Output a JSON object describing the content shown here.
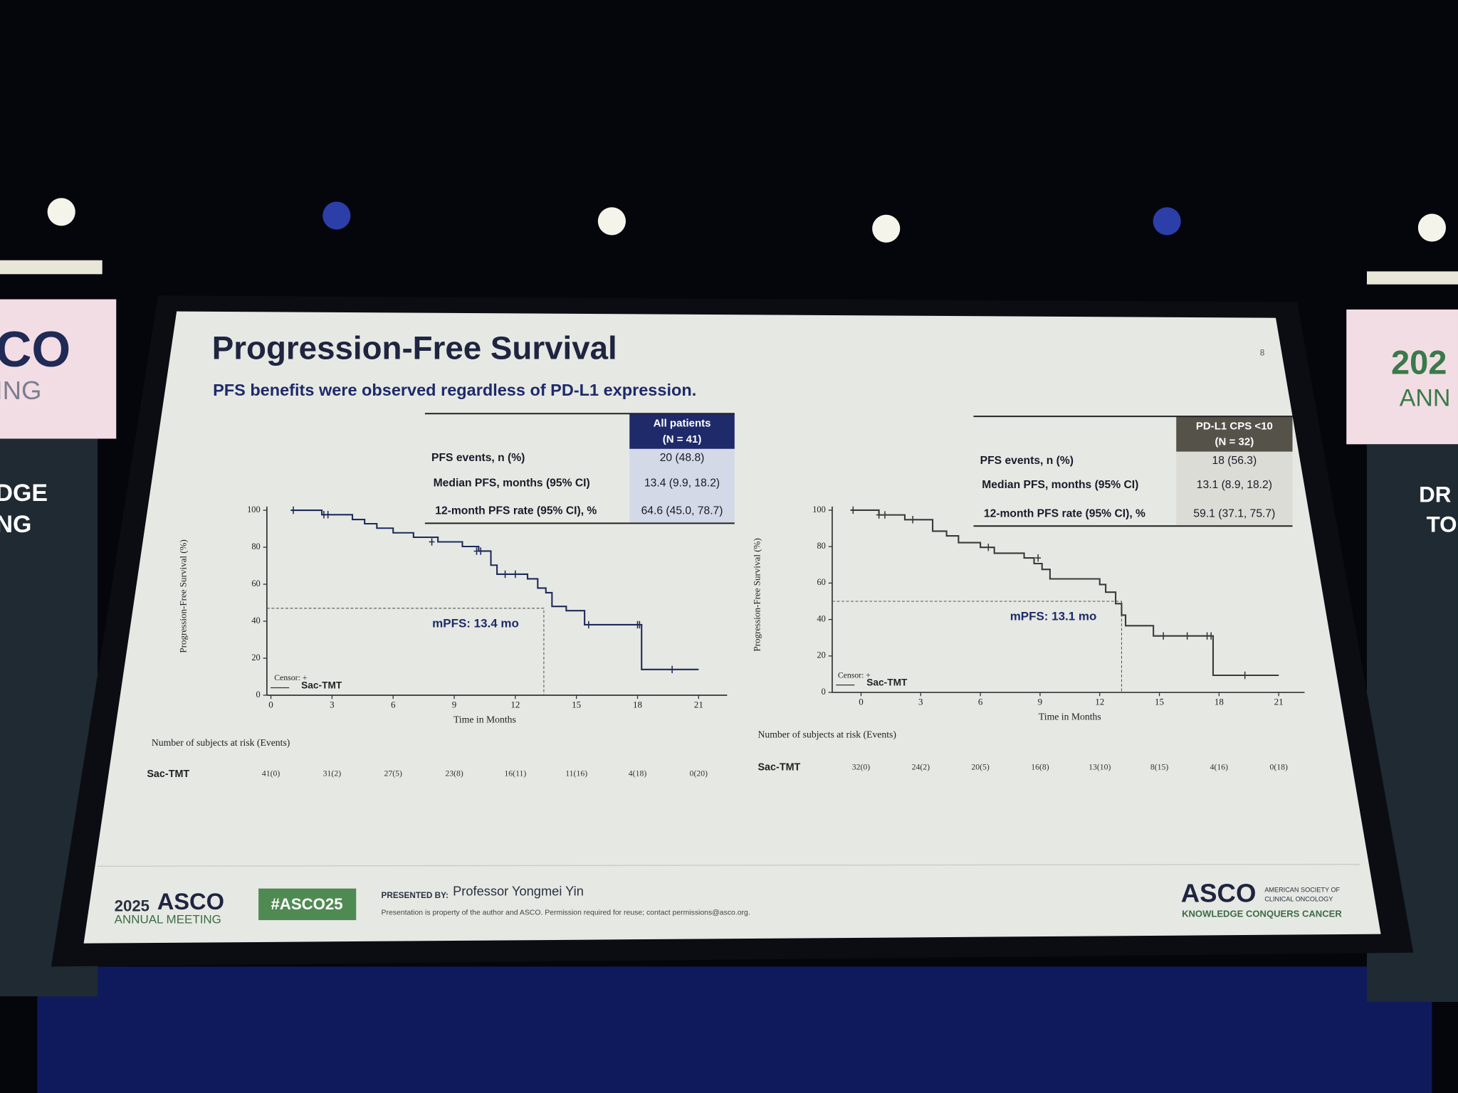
{
  "slide": {
    "title": "Progression-Free Survival",
    "subtitle": "PFS benefits were observed regardless of PD-L1 expression.",
    "page_number": "8"
  },
  "tables": [
    {
      "header": [
        "All patients",
        "(N = 41)"
      ],
      "rows": [
        [
          "PFS events, n (%)",
          "20 (48.8)"
        ],
        [
          "Median PFS, months (95% CI)",
          "13.4 (9.9, 18.2)"
        ],
        [
          "12-month PFS rate (95% CI), %",
          "64.6 (45.0, 78.7)"
        ]
      ]
    },
    {
      "header": [
        "PD-L1 CPS <10",
        "(N = 32)"
      ],
      "rows": [
        [
          "PFS events, n (%)",
          "18 (56.3)"
        ],
        [
          "Median PFS, months (95% CI)",
          "13.1 (8.9, 18.2)"
        ],
        [
          "12-month PFS rate (95% CI), %",
          "59.1 (37.1, 75.7)"
        ]
      ]
    }
  ],
  "chart_data": [
    {
      "type": "line",
      "step": true,
      "ylabel": "Progression-Free Survival (%)",
      "xlabel": "Time in Months",
      "xlim": [
        -0.2,
        22.4
      ],
      "ylim": [
        0,
        102
      ],
      "xticks": [
        0,
        3,
        6,
        9,
        12,
        15,
        18,
        21
      ],
      "yticks": [
        0,
        20,
        40,
        60,
        80,
        100
      ],
      "series": [
        {
          "name": "Sac-TMT",
          "color": "#1f2a5a",
          "x": [
            1.0,
            2.5,
            4.0,
            4.6,
            5.2,
            6.0,
            7.0,
            8.2,
            9.4,
            10.2,
            10.8,
            11.1,
            12.6,
            13.1,
            13.5,
            13.8,
            14.5,
            15.4,
            18.2,
            21.0
          ],
          "values": [
            100,
            97.6,
            95,
            92.7,
            90.3,
            87.8,
            85.4,
            82.9,
            80.4,
            77.9,
            70.3,
            65.4,
            62.9,
            57.9,
            55.4,
            48,
            45.7,
            38.1,
            13.9,
            13.9
          ]
        }
      ],
      "censored": {
        "x": [
          1.1,
          2.6,
          2.8,
          7.9,
          10.1,
          10.3,
          11.5,
          12.0,
          15.6,
          18.0,
          18.1,
          19.7
        ],
        "y": [
          100,
          97.6,
          97.6,
          82.9,
          77.9,
          77.9,
          65.4,
          65.4,
          38.1,
          38.1,
          38.1,
          13.9
        ]
      },
      "median_x": 13.4,
      "median_y": 47,
      "annotation": "mPFS: 13.4 mo",
      "legend_note": "Censor: +",
      "risk_label": "Number of subjects at risk (Events)",
      "risk_row": "Sac-TMT",
      "risk_values": [
        "41(0)",
        "31(2)",
        "27(5)",
        "23(8)",
        "16(11)",
        "11(16)",
        "4(18)",
        "0(20)"
      ]
    },
    {
      "type": "line",
      "step": true,
      "ylabel": "Progression-Free Survival (%)",
      "xlabel": "Time in Months",
      "xlim": [
        -1.45,
        22.3
      ],
      "ylim": [
        0,
        102
      ],
      "xticks": [
        0,
        3,
        6,
        9,
        12,
        15,
        18,
        21
      ],
      "yticks": [
        0,
        20,
        40,
        60,
        80,
        100
      ],
      "series": [
        {
          "name": "Sac-TMT",
          "color": "#3a3a3a",
          "x": [
            -0.5,
            0.9,
            2.2,
            3.6,
            4.3,
            4.9,
            6.0,
            6.7,
            8.2,
            8.7,
            9.1,
            9.5,
            12.0,
            12.3,
            12.8,
            13.1,
            13.3,
            14.7,
            17.7,
            21.0
          ],
          "values": [
            100,
            97.4,
            94.8,
            88.5,
            85.9,
            82.2,
            79.6,
            76.4,
            73.8,
            70.7,
            67.5,
            62.3,
            59.2,
            55,
            48.7,
            42.4,
            36.6,
            31,
            9.4,
            9.4
          ]
        }
      ],
      "censored": {
        "x": [
          -0.4,
          0.9,
          1.2,
          2.6,
          6.4,
          8.9,
          15.2,
          16.4,
          17.4,
          17.6,
          19.3
        ],
        "y": [
          100,
          97.4,
          97.4,
          94.8,
          79.6,
          73.8,
          31,
          31,
          31,
          31,
          9.4
        ]
      },
      "median_x": 13.1,
      "median_y": 50,
      "annotation": "mPFS: 13.1 mo",
      "legend_note": "Censor: +",
      "risk_label": "Number of subjects at risk (Events)",
      "risk_row": "Sac-TMT",
      "risk_values": [
        "32(0)",
        "24(2)",
        "20(5)",
        "16(8)",
        "13(10)",
        "8(15)",
        "4(16)",
        "0(18)"
      ]
    }
  ],
  "footer": {
    "year": "2025",
    "meeting": "ASCO",
    "meeting_sub": "ANNUAL MEETING",
    "hashtag": "#ASCO25",
    "presented_by": "PRESENTED BY:",
    "presenter": "Professor Yongmei Yin",
    "notice": "Presentation is property of the author and ASCO. Permission required for reuse; contact permissions@asco.org.",
    "logo": "ASCO",
    "logo_sub1": "AMERICAN SOCIETY OF",
    "logo_sub2": "CLINICAL ONCOLOGY",
    "tagline": "KNOWLEDGE CONQUERS CANCER"
  },
  "banners": {
    "left": [
      "CO",
      "ING",
      "DGE",
      "NG"
    ],
    "right": [
      "202",
      "ANN",
      "DR",
      "TO"
    ]
  }
}
